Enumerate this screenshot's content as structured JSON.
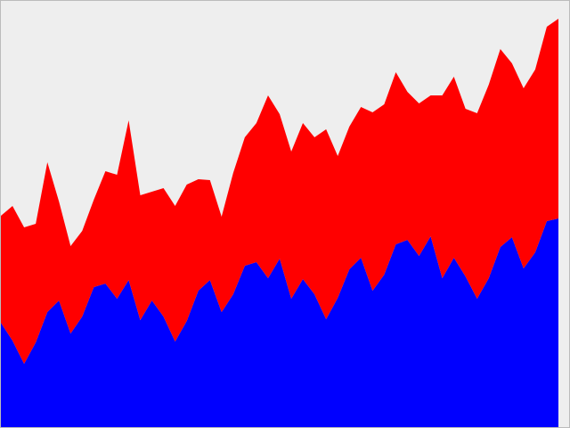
{
  "chart_data": {
    "type": "area",
    "stacked": true,
    "title": "",
    "xlabel": "",
    "ylabel": "",
    "grid": false,
    "legend": "none",
    "axes_visible": false,
    "background_color": "#eeeeee",
    "frame_color": "#bbbbbb",
    "xlim": [
      0,
      48
    ],
    "ylim": [
      0,
      480
    ],
    "x": [
      0,
      1,
      2,
      3,
      4,
      5,
      6,
      7,
      8,
      9,
      10,
      11,
      12,
      13,
      14,
      15,
      16,
      17,
      18,
      19,
      20,
      21,
      22,
      23,
      24,
      25,
      26,
      27,
      28,
      29,
      30,
      31,
      32,
      33,
      34,
      35,
      36,
      37,
      38,
      39,
      40,
      41,
      42,
      43,
      44,
      45,
      46,
      47,
      48
    ],
    "series": [
      {
        "color": "#0000ff",
        "values": [
          118,
          98,
          72,
          96,
          130,
          143,
          106,
          125,
          158,
          162,
          145,
          166,
          121,
          143,
          125,
          97,
          120,
          154,
          166,
          130,
          150,
          182,
          186,
          168,
          190,
          145,
          167,
          150,
          122,
          146,
          178,
          191,
          154,
          172,
          206,
          211,
          193,
          215,
          168,
          191,
          170,
          145,
          168,
          203,
          214,
          179,
          197,
          232,
          235
        ]
      },
      {
        "color": "#ff0000",
        "values": [
          120,
          151,
          153,
          133,
          168,
          111,
          98,
          96,
          98,
          126,
          139,
          179,
          140,
          122,
          144,
          152,
          153,
          125,
          112,
          107,
          136,
          144,
          156,
          205,
          162,
          165,
          175,
          176,
          213,
          159,
          160,
          169,
          200,
          191,
          193,
          166,
          171,
          158,
          205,
          203,
          188,
          208,
          217,
          222,
          195,
          202,
          205,
          218,
          224
        ]
      }
    ]
  }
}
